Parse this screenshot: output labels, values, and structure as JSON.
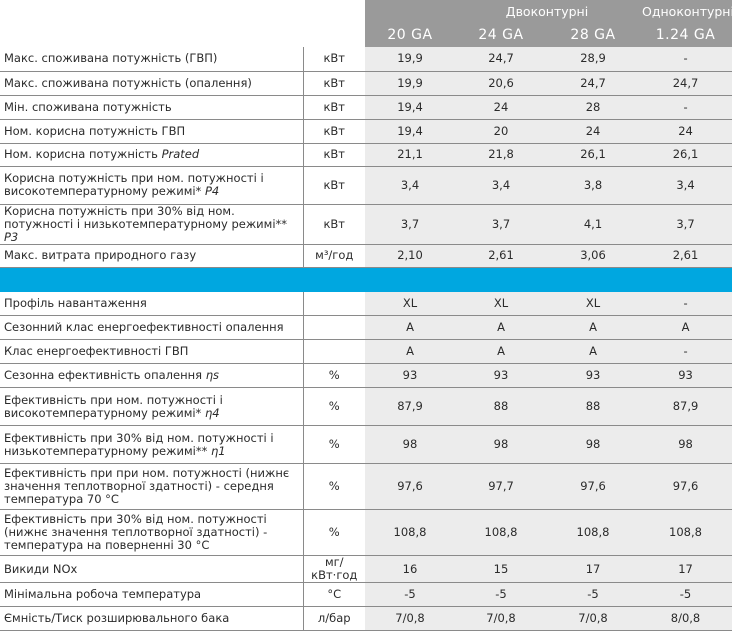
{
  "header": {
    "group_double": "Двоконтурні",
    "group_single": "Одноконтурні",
    "models": [
      "20 GA",
      "24 GA",
      "28 GA",
      "1.24 GA"
    ]
  },
  "colors": {
    "header_gray": "#9a9a9a",
    "value_bg": "#ececec",
    "separator_blue": "#00a7e0"
  },
  "section1": [
    {
      "label": "Макс. споживана потужність (ГВП)",
      "unit": "кВт",
      "values": [
        "19,9",
        "24,7",
        "28,9",
        "-"
      ]
    },
    {
      "label": "Макс. споживана потужність (опалення)",
      "unit": "кВт",
      "values": [
        "19,9",
        "20,6",
        "24,7",
        "24,7"
      ]
    },
    {
      "label": "Мін. споживана потужність",
      "unit": "кВт",
      "values": [
        "19,4",
        "24",
        "28",
        "-"
      ]
    },
    {
      "label": "Ном. корисна потужність ГВП",
      "unit": "кВт",
      "values": [
        "19,4",
        "20",
        "24",
        "24"
      ]
    },
    {
      "label": "Ном. корисна потужність ",
      "label_em": "Prated",
      "unit": "кВт",
      "values": [
        "21,1",
        "21,8",
        "26,1",
        "26,1"
      ]
    },
    {
      "label": "Корисна потужність при ном. потужності і високотемпературному режимі* ",
      "label_em": "P4",
      "unit": "кВт",
      "values": [
        "3,4",
        "3,4",
        "3,8",
        "3,4"
      ]
    },
    {
      "label": "Корисна потужність при 30% від ном. потужності і низькотемпературному режимі** ",
      "label_em": "P3",
      "unit": "кВт",
      "values": [
        "3,7",
        "3,7",
        "4,1",
        "3,7"
      ]
    },
    {
      "label": "Макс. витрата природного газу",
      "unit": "м³/год",
      "values": [
        "2,10",
        "2,61",
        "3,06",
        "2,61"
      ]
    }
  ],
  "section2": [
    {
      "label": "Профіль навантаження",
      "unit": "",
      "values": [
        "XL",
        "XL",
        "XL",
        "-"
      ]
    },
    {
      "label": "Сезонний клас енергоефективності опалення",
      "unit": "",
      "values": [
        "A",
        "A",
        "A",
        "A"
      ]
    },
    {
      "label": "Клас енергоефективності ГВП",
      "unit": "",
      "values": [
        "A",
        "A",
        "A",
        "-"
      ]
    },
    {
      "label": "Сезонна ефективність опалення ",
      "label_em": "ηs",
      "unit": "%",
      "values": [
        "93",
        "93",
        "93",
        "93"
      ]
    },
    {
      "label": "Ефективність при ном. потужності і високотемпературному режимі* ",
      "label_em": "η4",
      "unit": "%",
      "values": [
        "87,9",
        "88",
        "88",
        "87,9"
      ]
    },
    {
      "label": "Ефективність при 30% від ном. потужності і низькотемпературному режимі** ",
      "label_em": "η1",
      "unit": "%",
      "values": [
        "98",
        "98",
        "98",
        "98"
      ]
    },
    {
      "label": "Ефективність при при ном. потужності (нижнє значення теплотворної здатності) - середня температура 70 °С",
      "unit": "%",
      "values": [
        "97,6",
        "97,7",
        "97,6",
        "97,6"
      ]
    },
    {
      "label": "Ефективність при 30% від ном. потужності (нижнє значення теплотворної здатності) - температура на поверненні 30 °С",
      "unit": "%",
      "values": [
        "108,8",
        "108,8",
        "108,8",
        "108,8"
      ]
    },
    {
      "label": "Викиди NOx",
      "unit": "мг/кВт·год",
      "values": [
        "16",
        "15",
        "17",
        "17"
      ]
    },
    {
      "label": "Мінімальна робоча температура",
      "unit": "°С",
      "values": [
        "-5",
        "-5",
        "-5",
        "-5"
      ]
    },
    {
      "label": "Ємність/Тиск розширювального бака",
      "unit": "л/бар",
      "values": [
        "7/0,8",
        "7/0,8",
        "7/0,8",
        "8/0,8"
      ]
    }
  ]
}
